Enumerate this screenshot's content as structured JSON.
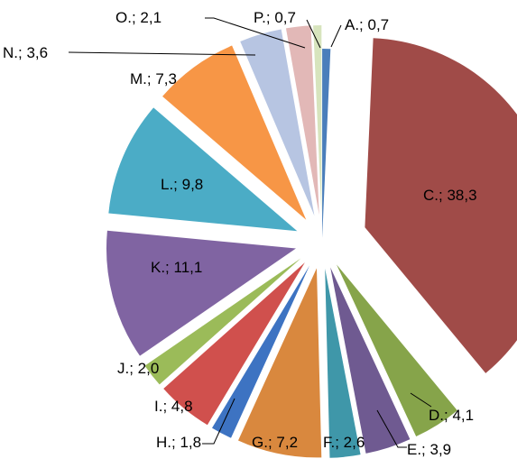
{
  "chart_data": {
    "type": "pie",
    "title": "",
    "exploded": true,
    "slices": [
      {
        "label": "A.; 0,7",
        "name": "A.",
        "value": 0.7,
        "color": "#4A7EBB"
      },
      {
        "label": "C.; 38,3",
        "name": "C.",
        "value": 38.3,
        "color": "#A04B48"
      },
      {
        "label": "D.; 4,1",
        "name": "D.",
        "value": 4.1,
        "color": "#86A44A"
      },
      {
        "label": "E.; 3,9",
        "name": "E.",
        "value": 3.9,
        "color": "#6F5A91"
      },
      {
        "label": "F.; 2,6",
        "name": "F.",
        "value": 2.6,
        "color": "#3F97A9"
      },
      {
        "label": "G.; 7,2",
        "name": "G.",
        "value": 7.2,
        "color": "#D9883E"
      },
      {
        "label": "H.; 1,8",
        "name": "H.",
        "value": 1.8,
        "color": "#3D73C2"
      },
      {
        "label": "I.; 4,8",
        "name": "I.",
        "value": 4.8,
        "color": "#D0504D"
      },
      {
        "label": "J.; 2,0",
        "name": "J.",
        "value": 2.0,
        "color": "#9BBB59"
      },
      {
        "label": "K.; 11,1",
        "name": "K.",
        "value": 11.1,
        "color": "#8064A2"
      },
      {
        "label": "L.; 9,8",
        "name": "L.",
        "value": 9.8,
        "color": "#4BACC6"
      },
      {
        "label": "M.; 7,3",
        "name": "M.",
        "value": 7.3,
        "color": "#F79646"
      },
      {
        "label": "N.; 3,6",
        "name": "N.",
        "value": 3.6,
        "color": "#B7C5E2"
      },
      {
        "label": "O.; 2,1",
        "name": "O.",
        "value": 2.1,
        "color": "#E2B8B7"
      },
      {
        "label": "P.; 0,7",
        "name": "P.",
        "value": 0.7,
        "color": "#D7E4BD"
      }
    ]
  }
}
